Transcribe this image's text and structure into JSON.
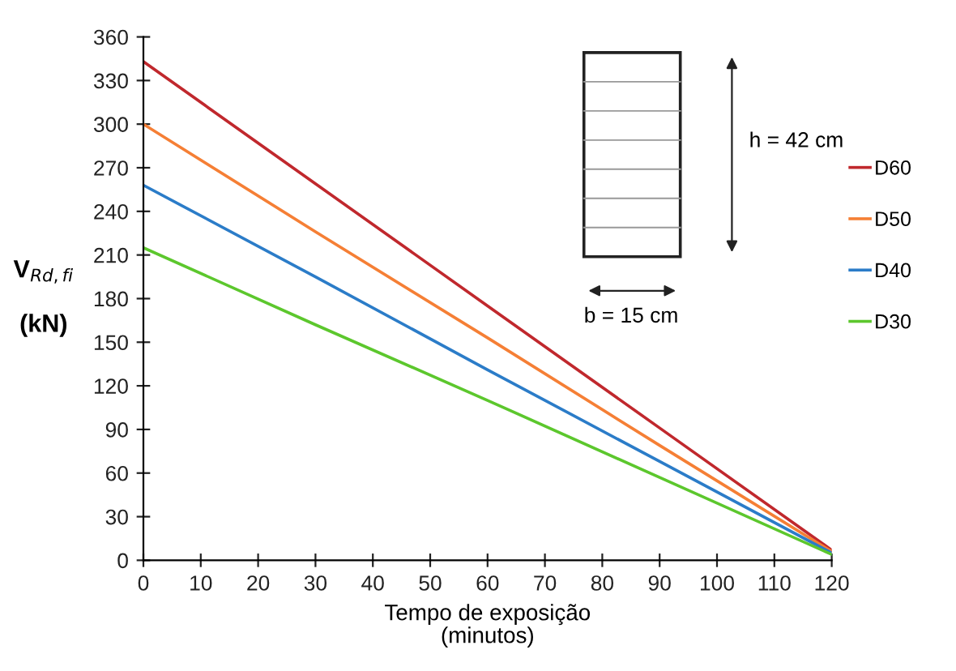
{
  "chart_data": {
    "type": "line",
    "xlabel": "Tempo de exposição\n(minutos)",
    "ylabel": "V$_{Rd,fi}$\n\n(kN)",
    "x": [
      0,
      30,
      60,
      90,
      120
    ],
    "series": [
      {
        "name": "D60",
        "color": "#c0282d",
        "values": [
          343,
          259,
          175,
          91,
          7
        ]
      },
      {
        "name": "D50",
        "color": "#f57f35",
        "values": [
          300,
          226,
          153,
          79,
          6
        ]
      },
      {
        "name": "D40",
        "color": "#2b7cc8",
        "values": [
          258,
          195,
          131,
          68,
          5
        ]
      },
      {
        "name": "D30",
        "color": "#5cc72d",
        "values": [
          215,
          162,
          110,
          57,
          4
        ]
      }
    ],
    "xlim": [
      0,
      120
    ],
    "xticks": [
      0,
      10,
      20,
      30,
      40,
      50,
      60,
      70,
      80,
      90,
      100,
      110,
      120
    ],
    "ylim": [
      0,
      360
    ],
    "yticks": [
      0,
      30,
      60,
      90,
      120,
      150,
      180,
      210,
      240,
      270,
      300,
      330,
      360
    ],
    "annotations": [
      "h = 42 cm",
      "b = 15 cm"
    ],
    "legend": "right",
    "marker": "none",
    "line_style": "solid"
  }
}
